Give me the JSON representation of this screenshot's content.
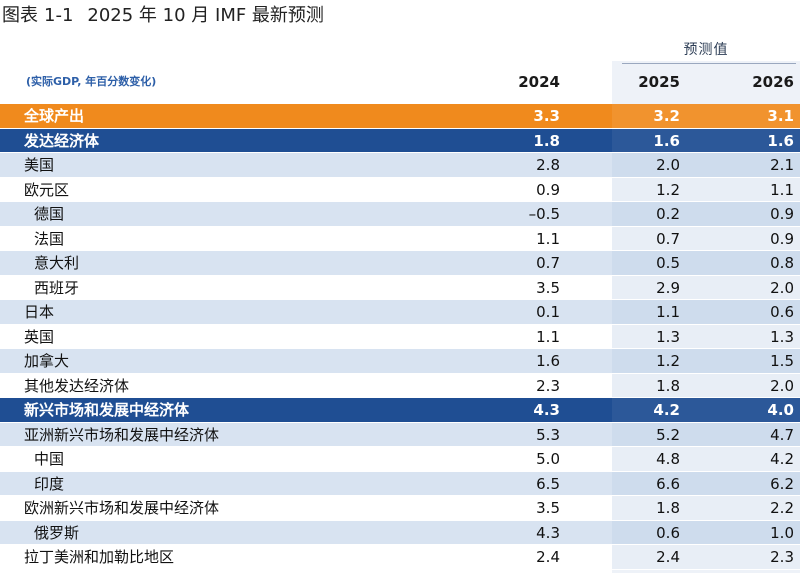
{
  "caption": {
    "figure": "图表",
    "number": "1-1",
    "text": "2025 年 10 月 IMF 最新预测"
  },
  "chart_data": {
    "type": "table",
    "units": "(实际GDP, 年百分数变化)",
    "projection_label": "预测值",
    "columns": [
      "2024",
      "2025",
      "2026"
    ],
    "rows": [
      {
        "label": "全球产出",
        "values": [
          "3.3",
          "3.2",
          "3.1"
        ],
        "style": "orange",
        "indent": false
      },
      {
        "label": "发达经济体",
        "values": [
          "1.8",
          "1.6",
          "1.6"
        ],
        "style": "navy",
        "indent": false
      },
      {
        "label": "美国",
        "values": [
          "2.8",
          "2.0",
          "2.1"
        ],
        "style": "light",
        "indent": false
      },
      {
        "label": "欧元区",
        "values": [
          "0.9",
          "1.2",
          "1.1"
        ],
        "style": "white",
        "indent": false
      },
      {
        "label": "德国",
        "values": [
          "–0.5",
          "0.2",
          "0.9"
        ],
        "style": "light",
        "indent": true
      },
      {
        "label": "法国",
        "values": [
          "1.1",
          "0.7",
          "0.9"
        ],
        "style": "white",
        "indent": true
      },
      {
        "label": "意大利",
        "values": [
          "0.7",
          "0.5",
          "0.8"
        ],
        "style": "light",
        "indent": true
      },
      {
        "label": "西班牙",
        "values": [
          "3.5",
          "2.9",
          "2.0"
        ],
        "style": "white",
        "indent": true
      },
      {
        "label": "日本",
        "values": [
          "0.1",
          "1.1",
          "0.6"
        ],
        "style": "light",
        "indent": false
      },
      {
        "label": "英国",
        "values": [
          "1.1",
          "1.3",
          "1.3"
        ],
        "style": "white",
        "indent": false
      },
      {
        "label": "加拿大",
        "values": [
          "1.6",
          "1.2",
          "1.5"
        ],
        "style": "light",
        "indent": false
      },
      {
        "label": "其他发达经济体",
        "values": [
          "2.3",
          "1.8",
          "2.0"
        ],
        "style": "white",
        "indent": false
      },
      {
        "label": "新兴市场和发展中经济体",
        "values": [
          "4.3",
          "4.2",
          "4.0"
        ],
        "style": "navy",
        "indent": false
      },
      {
        "label": "亚洲新兴市场和发展中经济体",
        "values": [
          "5.3",
          "5.2",
          "4.7"
        ],
        "style": "light",
        "indent": false
      },
      {
        "label": "中国",
        "values": [
          "5.0",
          "4.8",
          "4.2"
        ],
        "style": "white",
        "indent": true
      },
      {
        "label": "印度",
        "values": [
          "6.5",
          "6.6",
          "6.2"
        ],
        "style": "light",
        "indent": true
      },
      {
        "label": "欧洲新兴市场和发展中经济体",
        "values": [
          "3.5",
          "1.8",
          "2.2"
        ],
        "style": "white",
        "indent": false
      },
      {
        "label": "俄罗斯",
        "values": [
          "4.3",
          "0.6",
          "1.0"
        ],
        "style": "light",
        "indent": true
      },
      {
        "label": "拉丁美洲和加勒比地区",
        "values": [
          "2.4",
          "2.4",
          "2.3"
        ],
        "style": "white",
        "indent": false
      }
    ]
  }
}
